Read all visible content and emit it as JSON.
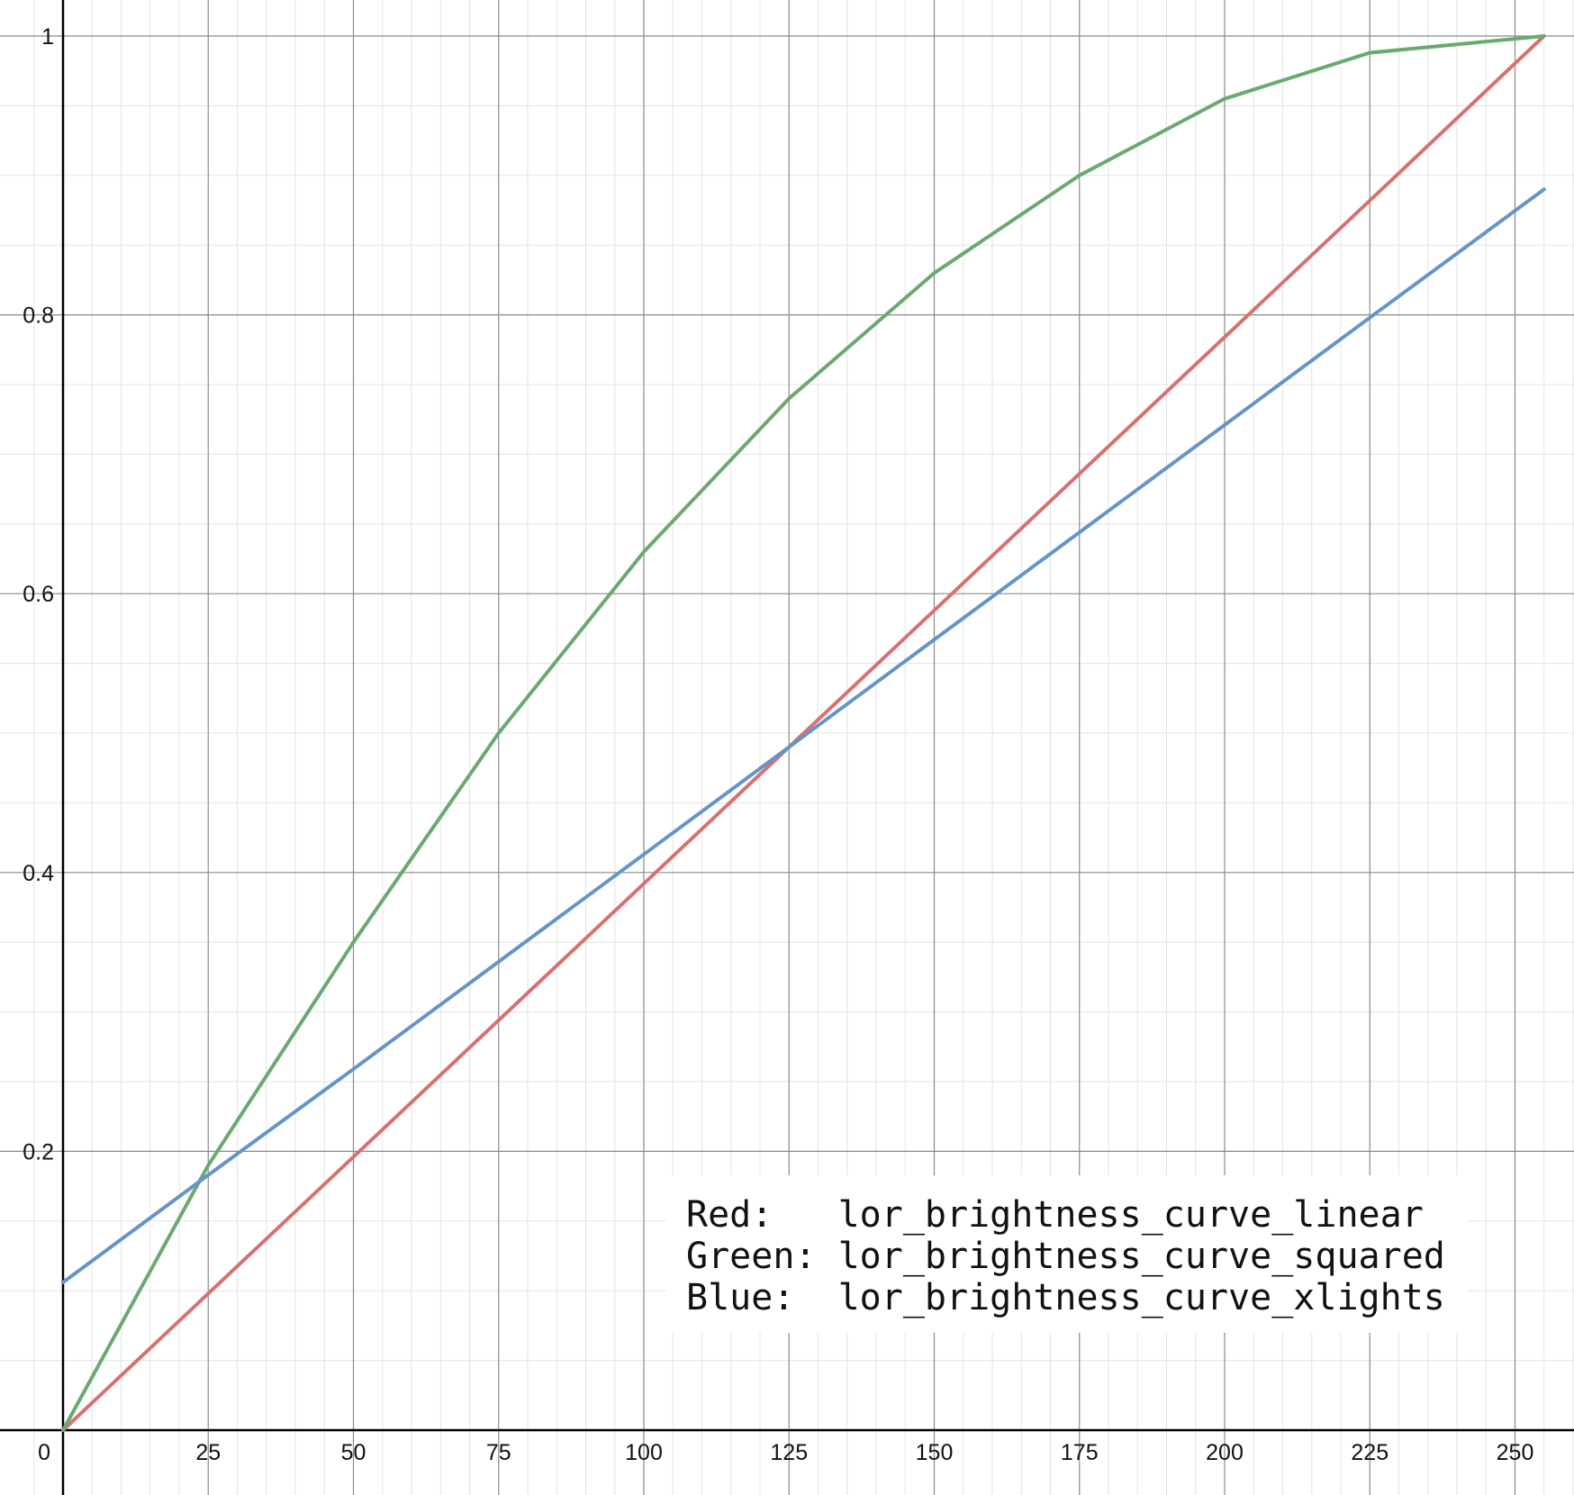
{
  "chart_data": {
    "type": "line",
    "title": "",
    "xlabel": "",
    "ylabel": "",
    "xlim": [
      0,
      260
    ],
    "ylim": [
      0,
      1.05
    ],
    "x_ticks": [
      {
        "value": 0,
        "label": "0"
      },
      {
        "value": 25,
        "label": "25"
      },
      {
        "value": 50,
        "label": "50"
      },
      {
        "value": 75,
        "label": "75"
      },
      {
        "value": 100,
        "label": "100"
      },
      {
        "value": 125,
        "label": "125"
      },
      {
        "value": 150,
        "label": "150"
      },
      {
        "value": 175,
        "label": "175"
      },
      {
        "value": 200,
        "label": "200"
      },
      {
        "value": 225,
        "label": "225"
      },
      {
        "value": 250,
        "label": "250"
      }
    ],
    "y_ticks": [
      {
        "value": 0.2,
        "label": "0.2"
      },
      {
        "value": 0.4,
        "label": "0.4"
      },
      {
        "value": 0.6,
        "label": "0.6"
      },
      {
        "value": 0.8,
        "label": "0.8"
      },
      {
        "value": 1,
        "label": "1"
      }
    ],
    "grid": true,
    "x": [
      0,
      25,
      50,
      75,
      100,
      125,
      150,
      175,
      200,
      225,
      255
    ],
    "series": [
      {
        "key": "red",
        "color": "#d97070",
        "values": [
          0,
          0.098,
          0.196,
          0.294,
          0.392,
          0.49,
          0.588,
          0.686,
          0.784,
          0.882,
          1
        ]
      },
      {
        "key": "green",
        "color": "#6aa972",
        "values": [
          0,
          0.19,
          0.35,
          0.5,
          0.63,
          0.74,
          0.83,
          0.9,
          0.955,
          0.988,
          1
        ]
      },
      {
        "key": "blue",
        "color": "#6495c8",
        "values": [
          0.106,
          0.183,
          0.259,
          0.336,
          0.413,
          0.49,
          0.567,
          0.644,
          0.721,
          0.798,
          0.89
        ]
      }
    ],
    "legend": {
      "placement": "bottom-right",
      "entries": [
        "Red:   lor_brightness_curve_linear",
        "Green: lor_brightness_curve_squared",
        "Blue:  lor_brightness_curve_xlights"
      ]
    }
  }
}
